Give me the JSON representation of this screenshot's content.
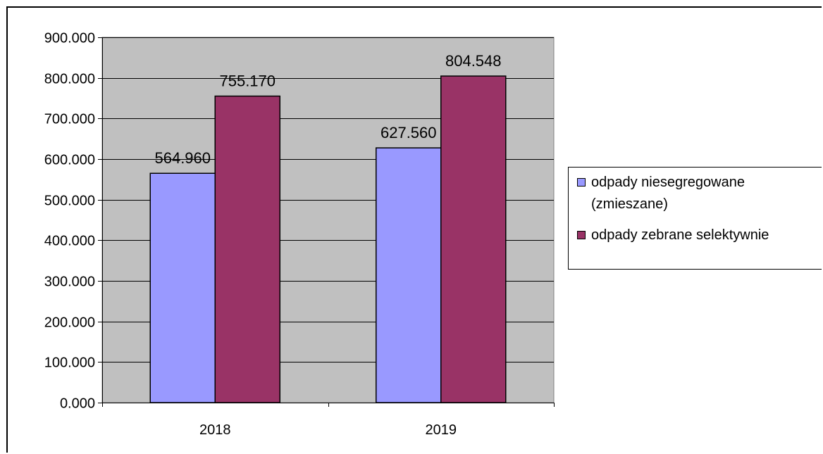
{
  "chart_data": {
    "type": "bar",
    "categories": [
      "2018",
      "2019"
    ],
    "series": [
      {
        "name": "odpady niesegregowane (zmieszane)",
        "values": [
          564960,
          627560
        ],
        "value_labels": [
          "564.960",
          "627.560"
        ],
        "color": "#9999FF"
      },
      {
        "name": "odpady zebrane selektywnie",
        "values": [
          755170,
          804548
        ],
        "value_labels": [
          "755.170",
          "804.548"
        ],
        "color": "#993366"
      }
    ],
    "ylim": [
      0,
      900000
    ],
    "ytick_labels": [
      "0.000",
      "100.000",
      "200.000",
      "300.000",
      "400.000",
      "500.000",
      "600.000",
      "700.000",
      "800.000",
      "900.000"
    ],
    "plot_background": "#C0C0C0",
    "grid": true,
    "legend_position": "right"
  },
  "legend": {
    "line1": "odpady niesegregowane",
    "line2": "(zmieszane)",
    "line3": "odpady zebrane selektywnie"
  }
}
